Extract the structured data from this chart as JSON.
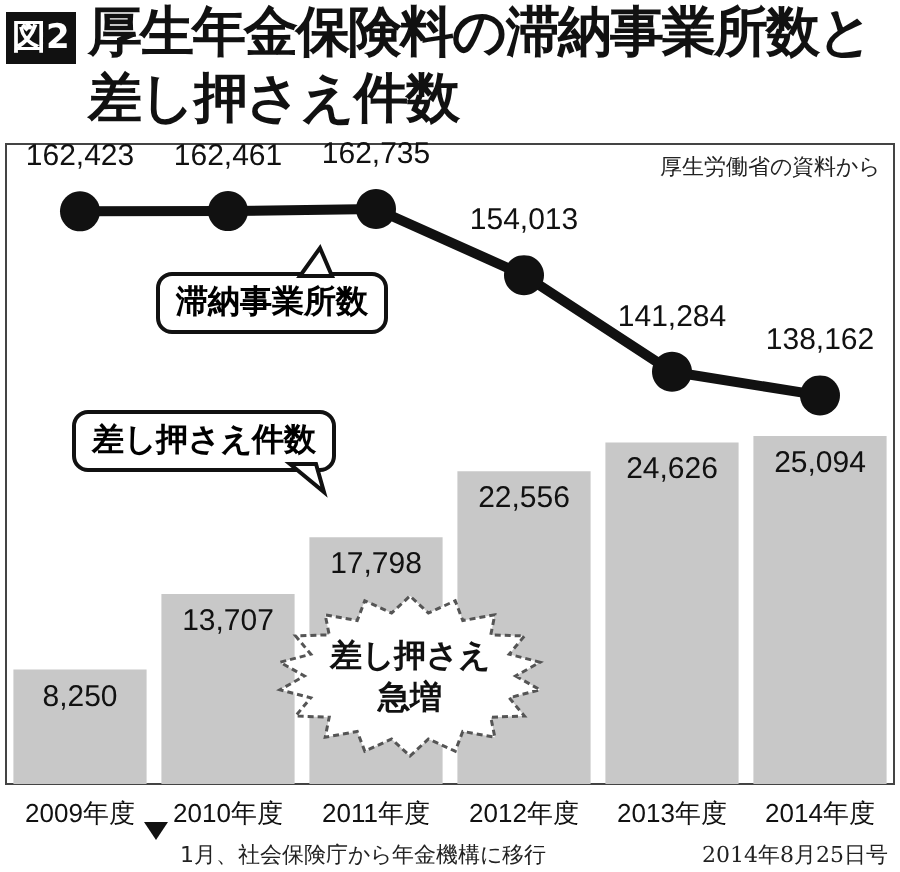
{
  "chart_data": {
    "type": "bar",
    "title": "厚生年金保険料の滞納事業所数と差し押さえ件数",
    "categories": [
      "2009年度",
      "2010年度",
      "2011年度",
      "2012年度",
      "2013年度",
      "2014年度"
    ],
    "series": [
      {
        "name": "滞納事業所数",
        "type": "line",
        "axis": "y2",
        "color": "#111111",
        "values": [
          162423,
          162461,
          162735,
          154013,
          141284,
          138162
        ],
        "value_labels": [
          "162,423",
          "162,461",
          "162,735",
          "154,013",
          "141,284",
          "138,162"
        ]
      },
      {
        "name": "差し押さえ件数",
        "color": "#c8c8c8",
        "values": [
          8250,
          13707,
          17798,
          22556,
          24626,
          25094
        ],
        "value_labels": [
          "8,250",
          "13,707",
          "17,798",
          "22,556",
          "24,626",
          "25,094"
        ]
      }
    ],
    "ylim": [
      0,
      46150
    ],
    "y2lim": [
      86950,
      171300
    ],
    "tick_labels": "x",
    "annotations": [
      "図2",
      "厚生労働省の資料から",
      "差し押さえ急増",
      "1月、社会保険庁から年金機構に移行",
      "2014年8月25日号"
    ],
    "marker": "circle",
    "grid": false,
    "legend": "top left"
  }
}
